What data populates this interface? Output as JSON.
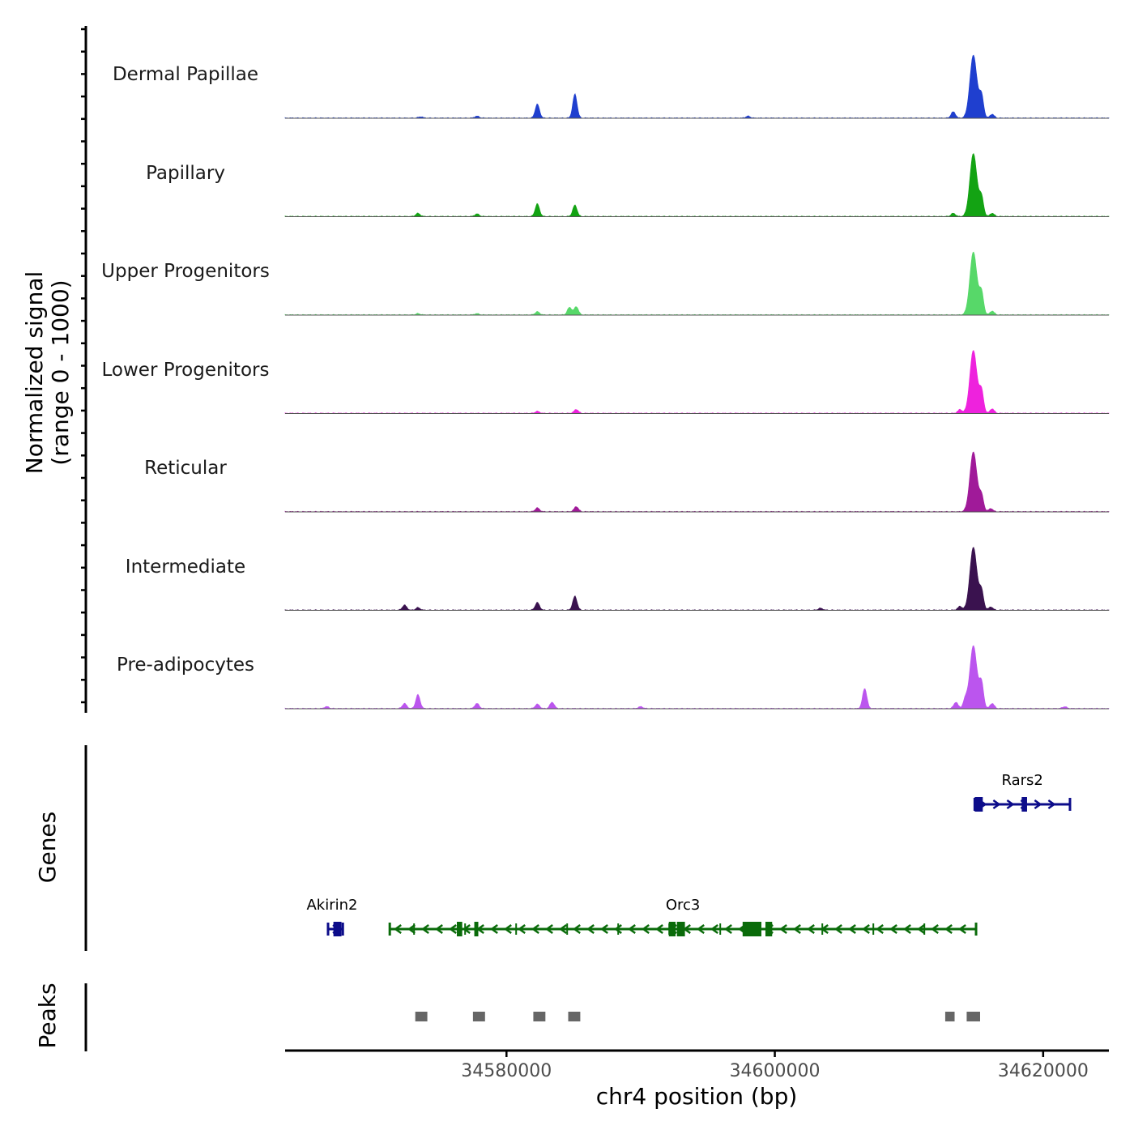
{
  "chart_data": {
    "type": "area",
    "y_axis_title_line1": "Normalized signal",
    "y_axis_title_line2": "(range 0 - 1000)",
    "xlabel": "chr4 position (bp)",
    "x_range": [
      34563500,
      34624900
    ],
    "x_ticks": [
      34580000,
      34600000,
      34620000
    ],
    "x_tick_labels": [
      "34580000",
      "34600000",
      "34620000"
    ],
    "tracks": [
      {
        "name": "Dermal Papillae",
        "color": "#1f3fcf",
        "peaks": [
          [
            34573600,
            0.02
          ],
          [
            34577800,
            0.03
          ],
          [
            34582300,
            0.22
          ],
          [
            34585100,
            0.38
          ],
          [
            34598000,
            0.03
          ],
          [
            34613300,
            0.1
          ],
          [
            34614800,
            1.0
          ],
          [
            34615400,
            0.35
          ],
          [
            34616200,
            0.06
          ]
        ]
      },
      {
        "name": "Papillary",
        "color": "#13a313",
        "peaks": [
          [
            34573400,
            0.05
          ],
          [
            34577800,
            0.04
          ],
          [
            34582300,
            0.2
          ],
          [
            34585100,
            0.18
          ],
          [
            34613300,
            0.05
          ],
          [
            34614800,
            1.0
          ],
          [
            34615400,
            0.3
          ],
          [
            34616200,
            0.05
          ]
        ]
      },
      {
        "name": "Upper Progenitors",
        "color": "#57d869",
        "peaks": [
          [
            34573400,
            0.02
          ],
          [
            34577800,
            0.02
          ],
          [
            34582300,
            0.05
          ],
          [
            34584700,
            0.12
          ],
          [
            34585200,
            0.13
          ],
          [
            34614800,
            1.0
          ],
          [
            34615400,
            0.35
          ],
          [
            34616200,
            0.06
          ]
        ]
      },
      {
        "name": "Lower Progenitors",
        "color": "#ee22dd",
        "peaks": [
          [
            34582300,
            0.03
          ],
          [
            34585200,
            0.06
          ],
          [
            34613800,
            0.06
          ],
          [
            34614800,
            1.0
          ],
          [
            34615400,
            0.35
          ],
          [
            34616200,
            0.07
          ]
        ]
      },
      {
        "name": "Reticular",
        "color": "#a01a99",
        "peaks": [
          [
            34582300,
            0.06
          ],
          [
            34585200,
            0.08
          ],
          [
            34614800,
            0.95
          ],
          [
            34615400,
            0.25
          ],
          [
            34616100,
            0.05
          ]
        ]
      },
      {
        "name": "Intermediate",
        "color": "#3a124f",
        "peaks": [
          [
            34572400,
            0.08
          ],
          [
            34573400,
            0.04
          ],
          [
            34582300,
            0.12
          ],
          [
            34585100,
            0.22
          ],
          [
            34603400,
            0.03
          ],
          [
            34613800,
            0.06
          ],
          [
            34614800,
            1.0
          ],
          [
            34615400,
            0.3
          ],
          [
            34616100,
            0.05
          ]
        ]
      },
      {
        "name": "Pre-adipocytes",
        "color": "#bb55ee",
        "peaks": [
          [
            34566600,
            0.03
          ],
          [
            34572400,
            0.08
          ],
          [
            34573400,
            0.22
          ],
          [
            34577800,
            0.08
          ],
          [
            34582300,
            0.07
          ],
          [
            34583400,
            0.1
          ],
          [
            34590000,
            0.03
          ],
          [
            34606700,
            0.32
          ],
          [
            34613500,
            0.1
          ],
          [
            34614200,
            0.14
          ],
          [
            34614800,
            1.0
          ],
          [
            34615400,
            0.4
          ],
          [
            34616200,
            0.08
          ],
          [
            34621600,
            0.03
          ]
        ]
      }
    ],
    "genes_title": "Genes",
    "genes": [
      {
        "name": "Rars2",
        "start": 34614900,
        "end": 34622000,
        "strand": "+",
        "color": "#0c0c8a",
        "row": 0,
        "exons": [
          [
            34614900,
            34615500
          ],
          [
            34618400,
            34618800
          ]
        ]
      },
      {
        "name": "Akirin2",
        "start": 34566700,
        "end": 34567800,
        "strand": "+",
        "color": "#0c0c8a",
        "row": 1,
        "exons": [
          [
            34567100,
            34567700
          ]
        ]
      },
      {
        "name": "Orc3",
        "start": 34571300,
        "end": 34615000,
        "strand": "-",
        "color": "#0a6b0a",
        "row": 1,
        "exons": [
          [
            34576300,
            34576700
          ],
          [
            34577600,
            34577900
          ],
          [
            34592100,
            34592600
          ],
          [
            34592700,
            34593300
          ],
          [
            34597600,
            34599000
          ],
          [
            34599300,
            34599800
          ]
        ]
      }
    ],
    "peaks_title": "Peaks",
    "peak_regions": [
      [
        34573200,
        34574100
      ],
      [
        34577500,
        34578400
      ],
      [
        34582000,
        34582900
      ],
      [
        34584600,
        34585500
      ],
      [
        34612700,
        34613400
      ],
      [
        34614300,
        34615300
      ]
    ]
  }
}
